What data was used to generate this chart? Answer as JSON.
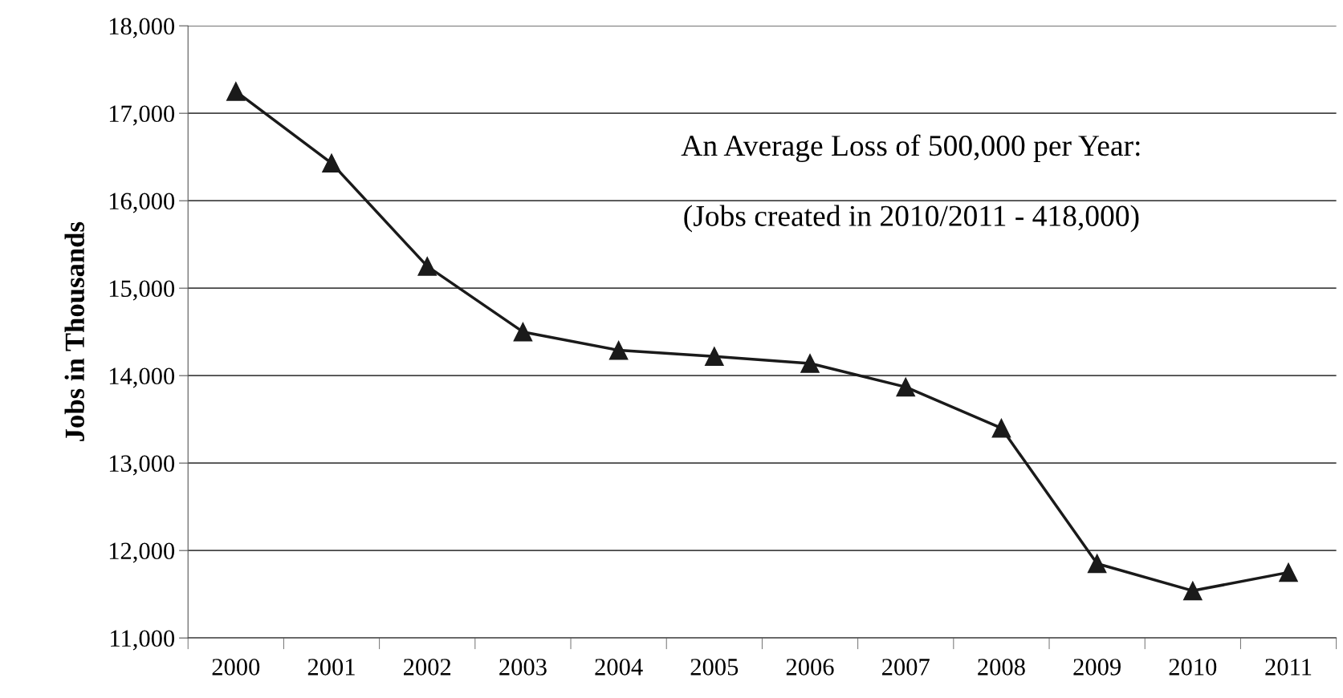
{
  "chart_data": {
    "type": "line",
    "ylabel": "Jobs in Thousands",
    "categories": [
      "2000",
      "2001",
      "2002",
      "2003",
      "2004",
      "2005",
      "2006",
      "2007",
      "2008",
      "2009",
      "2010",
      "2011"
    ],
    "series": [
      {
        "color": "#1a1a1a",
        "values": [
          17250,
          16430,
          15250,
          14500,
          14290,
          14220,
          14140,
          13870,
          13400,
          11850,
          11540,
          11750
        ]
      }
    ],
    "ylim": [
      11000,
      18000
    ],
    "yticks": [
      {
        "value": 11000,
        "label": "11,000"
      },
      {
        "value": 12000,
        "label": "12,000"
      },
      {
        "value": 13000,
        "label": "13,000"
      },
      {
        "value": 14000,
        "label": "14,000"
      },
      {
        "value": 15000,
        "label": "15,000"
      },
      {
        "value": 16000,
        "label": "16,000"
      },
      {
        "value": 17000,
        "label": "17,000"
      },
      {
        "value": 18000,
        "label": "18,000"
      }
    ],
    "grid": "y",
    "marker": "triangle",
    "line_style": "solid",
    "annotations": [
      "An Average Loss of 500,000 per Year:",
      "(Jobs created in 2010/2011 - 418,000)"
    ]
  }
}
